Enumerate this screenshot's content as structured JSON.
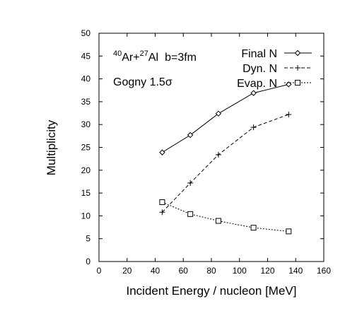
{
  "chart_data": {
    "type": "line",
    "xlabel": "Incident Energy / nucleon [MeV]",
    "ylabel": "Multiplicity",
    "xlim": [
      0,
      160
    ],
    "ylim": [
      0,
      50
    ],
    "xticks": [
      0,
      20,
      40,
      60,
      80,
      100,
      120,
      140,
      160
    ],
    "yticks": [
      0,
      5,
      10,
      15,
      20,
      25,
      30,
      35,
      40,
      45,
      50
    ],
    "grid": false,
    "legend_position": "top-right",
    "annotations": {
      "reaction": {
        "mass_a": "40",
        "elem_a": "Ar+",
        "mass_b": "27",
        "elem_b": "Al",
        "impact": "b=3fm"
      },
      "model": "Gogny 1.5σ"
    },
    "series": [
      {
        "name": "Final N",
        "marker": "diamond",
        "dash": "solid",
        "x": [
          45,
          65,
          85,
          110,
          135
        ],
        "y": [
          23.9,
          27.7,
          32.4,
          36.9,
          38.8
        ]
      },
      {
        "name": "Dyn. N",
        "marker": "plus",
        "dash": "dashed",
        "x": [
          45,
          65,
          85,
          110,
          135
        ],
        "y": [
          10.8,
          17.2,
          23.4,
          29.4,
          32.2
        ]
      },
      {
        "name": "Evap. N",
        "marker": "square",
        "dash": "dotted",
        "x": [
          45,
          65,
          85,
          110,
          135
        ],
        "y": [
          13.0,
          10.4,
          8.9,
          7.4,
          6.6
        ]
      }
    ]
  }
}
